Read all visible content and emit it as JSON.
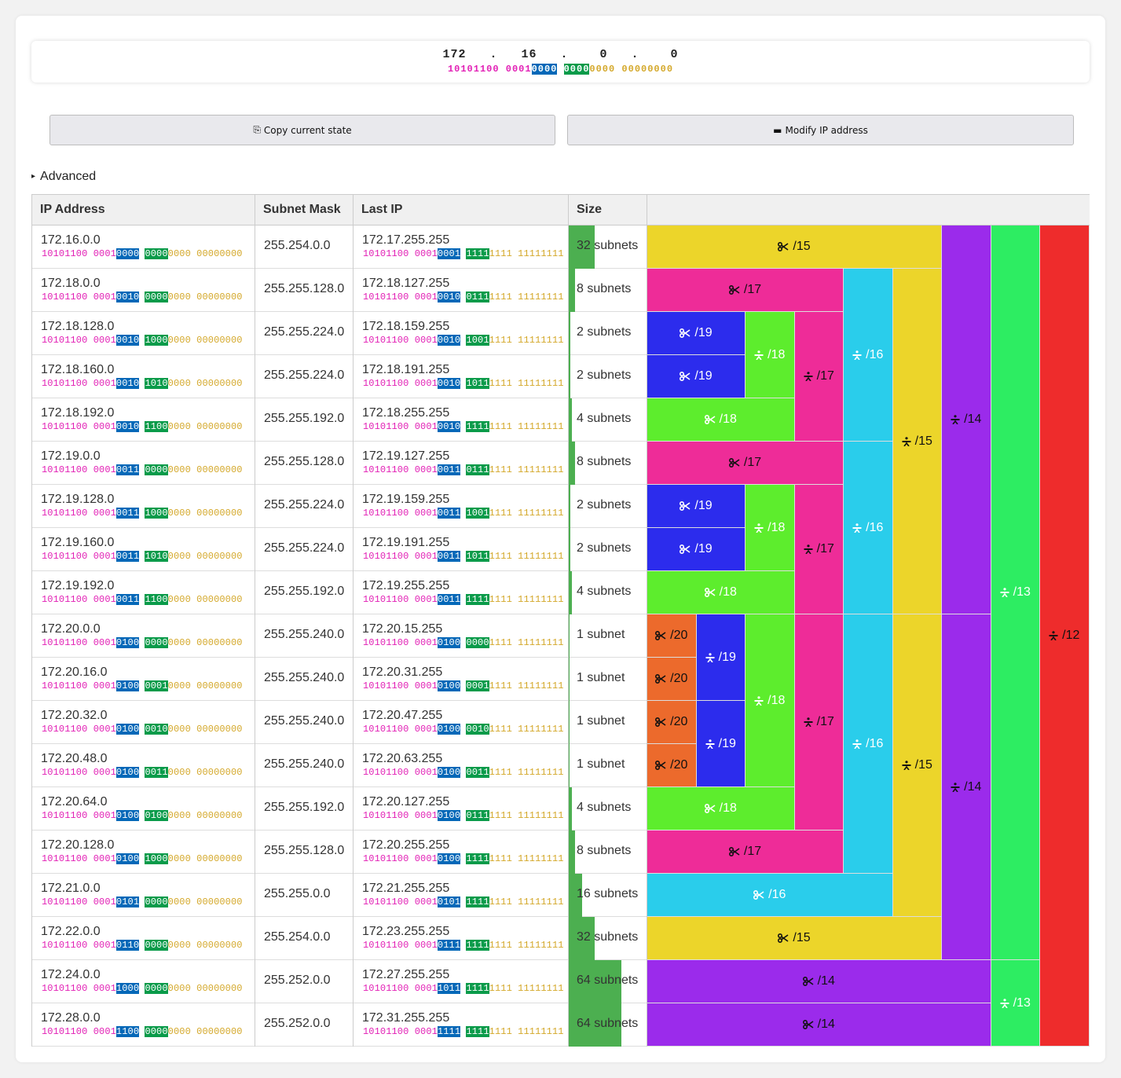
{
  "ip": {
    "octets": [
      "172",
      "16",
      "0",
      "0"
    ],
    "binary": {
      "pink": "10101100 0001",
      "blue": "0000",
      "space": " ",
      "green": "0000",
      "gold": "0000 00000000"
    }
  },
  "buttons": {
    "copy": "Copy current state",
    "copy_icon": "⎘",
    "modify": "Modify IP address",
    "modify_icon": "▬"
  },
  "advanced": {
    "label": "Advanced",
    "icon": "▸"
  },
  "table": {
    "headers": {
      "ip": "IP Address",
      "mask": "Subnet Mask",
      "last": "Last IP",
      "size": "Size"
    },
    "rows": [
      {
        "ip": "172.16.0.0",
        "ip_bin": [
          "10101100 0001",
          "0000",
          "0000",
          "0000 00000000"
        ],
        "mask": "255.254.0.0",
        "last": "172.17.255.255",
        "last_bin": [
          "10101100 0001",
          "0001",
          "1111",
          "1111 11111111"
        ],
        "size": "32 subnets",
        "size_fill": 0.32
      },
      {
        "ip": "172.18.0.0",
        "ip_bin": [
          "10101100 0001",
          "0010",
          "0000",
          "0000 00000000"
        ],
        "mask": "255.255.128.0",
        "last": "172.18.127.255",
        "last_bin": [
          "10101100 0001",
          "0010",
          "0111",
          "1111 11111111"
        ],
        "size": "8 subnets",
        "size_fill": 0.08
      },
      {
        "ip": "172.18.128.0",
        "ip_bin": [
          "10101100 0001",
          "0010",
          "1000",
          "0000 00000000"
        ],
        "mask": "255.255.224.0",
        "last": "172.18.159.255",
        "last_bin": [
          "10101100 0001",
          "0010",
          "1001",
          "1111 11111111"
        ],
        "size": "2 subnets",
        "size_fill": 0.02
      },
      {
        "ip": "172.18.160.0",
        "ip_bin": [
          "10101100 0001",
          "0010",
          "1010",
          "0000 00000000"
        ],
        "mask": "255.255.224.0",
        "last": "172.18.191.255",
        "last_bin": [
          "10101100 0001",
          "0010",
          "1011",
          "1111 11111111"
        ],
        "size": "2 subnets",
        "size_fill": 0.02
      },
      {
        "ip": "172.18.192.0",
        "ip_bin": [
          "10101100 0001",
          "0010",
          "1100",
          "0000 00000000"
        ],
        "mask": "255.255.192.0",
        "last": "172.18.255.255",
        "last_bin": [
          "10101100 0001",
          "0010",
          "1111",
          "1111 11111111"
        ],
        "size": "4 subnets",
        "size_fill": 0.04
      },
      {
        "ip": "172.19.0.0",
        "ip_bin": [
          "10101100 0001",
          "0011",
          "0000",
          "0000 00000000"
        ],
        "mask": "255.255.128.0",
        "last": "172.19.127.255",
        "last_bin": [
          "10101100 0001",
          "0011",
          "0111",
          "1111 11111111"
        ],
        "size": "8 subnets",
        "size_fill": 0.08
      },
      {
        "ip": "172.19.128.0",
        "ip_bin": [
          "10101100 0001",
          "0011",
          "1000",
          "0000 00000000"
        ],
        "mask": "255.255.224.0",
        "last": "172.19.159.255",
        "last_bin": [
          "10101100 0001",
          "0011",
          "1001",
          "1111 11111111"
        ],
        "size": "2 subnets",
        "size_fill": 0.02
      },
      {
        "ip": "172.19.160.0",
        "ip_bin": [
          "10101100 0001",
          "0011",
          "1010",
          "0000 00000000"
        ],
        "mask": "255.255.224.0",
        "last": "172.19.191.255",
        "last_bin": [
          "10101100 0001",
          "0011",
          "1011",
          "1111 11111111"
        ],
        "size": "2 subnets",
        "size_fill": 0.02
      },
      {
        "ip": "172.19.192.0",
        "ip_bin": [
          "10101100 0001",
          "0011",
          "1100",
          "0000 00000000"
        ],
        "mask": "255.255.192.0",
        "last": "172.19.255.255",
        "last_bin": [
          "10101100 0001",
          "0011",
          "1111",
          "1111 11111111"
        ],
        "size": "4 subnets",
        "size_fill": 0.04
      },
      {
        "ip": "172.20.0.0",
        "ip_bin": [
          "10101100 0001",
          "0100",
          "0000",
          "0000 00000000"
        ],
        "mask": "255.255.240.0",
        "last": "172.20.15.255",
        "last_bin": [
          "10101100 0001",
          "0100",
          "0000",
          "1111 11111111"
        ],
        "size": "1 subnet",
        "size_fill": 0.01
      },
      {
        "ip": "172.20.16.0",
        "ip_bin": [
          "10101100 0001",
          "0100",
          "0001",
          "0000 00000000"
        ],
        "mask": "255.255.240.0",
        "last": "172.20.31.255",
        "last_bin": [
          "10101100 0001",
          "0100",
          "0001",
          "1111 11111111"
        ],
        "size": "1 subnet",
        "size_fill": 0.01
      },
      {
        "ip": "172.20.32.0",
        "ip_bin": [
          "10101100 0001",
          "0100",
          "0010",
          "0000 00000000"
        ],
        "mask": "255.255.240.0",
        "last": "172.20.47.255",
        "last_bin": [
          "10101100 0001",
          "0100",
          "0010",
          "1111 11111111"
        ],
        "size": "1 subnet",
        "size_fill": 0.01
      },
      {
        "ip": "172.20.48.0",
        "ip_bin": [
          "10101100 0001",
          "0100",
          "0011",
          "0000 00000000"
        ],
        "mask": "255.255.240.0",
        "last": "172.20.63.255",
        "last_bin": [
          "10101100 0001",
          "0100",
          "0011",
          "1111 11111111"
        ],
        "size": "1 subnet",
        "size_fill": 0.01
      },
      {
        "ip": "172.20.64.0",
        "ip_bin": [
          "10101100 0001",
          "0100",
          "0100",
          "0000 00000000"
        ],
        "mask": "255.255.192.0",
        "last": "172.20.127.255",
        "last_bin": [
          "10101100 0001",
          "0100",
          "0111",
          "1111 11111111"
        ],
        "size": "4 subnets",
        "size_fill": 0.04
      },
      {
        "ip": "172.20.128.0",
        "ip_bin": [
          "10101100 0001",
          "0100",
          "1000",
          "0000 00000000"
        ],
        "mask": "255.255.128.0",
        "last": "172.20.255.255",
        "last_bin": [
          "10101100 0001",
          "0100",
          "1111",
          "1111 11111111"
        ],
        "size": "8 subnets",
        "size_fill": 0.08
      },
      {
        "ip": "172.21.0.0",
        "ip_bin": [
          "10101100 0001",
          "0101",
          "0000",
          "0000 00000000"
        ],
        "mask": "255.255.0.0",
        "last": "172.21.255.255",
        "last_bin": [
          "10101100 0001",
          "0101",
          "1111",
          "1111 11111111"
        ],
        "size": "16 subnets",
        "size_fill": 0.16
      },
      {
        "ip": "172.22.0.0",
        "ip_bin": [
          "10101100 0001",
          "0110",
          "0000",
          "0000 00000000"
        ],
        "mask": "255.254.0.0",
        "last": "172.23.255.255",
        "last_bin": [
          "10101100 0001",
          "0111",
          "1111",
          "1111 11111111"
        ],
        "size": "32 subnets",
        "size_fill": 0.32
      },
      {
        "ip": "172.24.0.0",
        "ip_bin": [
          "10101100 0001",
          "1000",
          "0000",
          "0000 00000000"
        ],
        "mask": "255.252.0.0",
        "last": "172.27.255.255",
        "last_bin": [
          "10101100 0001",
          "1011",
          "1111",
          "1111 11111111"
        ],
        "size": "64 subnets",
        "size_fill": 0.64
      },
      {
        "ip": "172.28.0.0",
        "ip_bin": [
          "10101100 0001",
          "1100",
          "0000",
          "0000 00000000"
        ],
        "mask": "255.252.0.0",
        "last": "172.31.255.255",
        "last_bin": [
          "10101100 0001",
          "1111",
          "1111",
          "1111 11111111"
        ],
        "size": "64 subnets",
        "size_fill": 0.64
      }
    ]
  },
  "colors": {
    "p12": "#ee2c2c",
    "p13": "#2ded62",
    "p14": "#9b2beb",
    "p15": "#ecd52a",
    "p16": "#2acdeb",
    "p17": "#ee2c98",
    "p18": "#5ded2d",
    "p19": "#2c2ced",
    "p20": "#ec6a2c"
  },
  "blocks": [
    {
      "prefix": "/15",
      "action": "split",
      "row": 0,
      "span": 1
    },
    {
      "prefix": "/17",
      "action": "split",
      "row": 1,
      "span": 1
    },
    {
      "prefix": "/19",
      "action": "split",
      "row": 2,
      "span": 1
    },
    {
      "prefix": "/19",
      "action": "split",
      "row": 3,
      "span": 1
    },
    {
      "prefix": "/18",
      "action": "join",
      "row": 2,
      "span": 2
    },
    {
      "prefix": "/18",
      "action": "split",
      "row": 4,
      "span": 1
    },
    {
      "prefix": "/17",
      "action": "join",
      "row": 2,
      "span": 3
    },
    {
      "prefix": "/16",
      "action": "join",
      "row": 1,
      "span": 4
    },
    {
      "prefix": "/17",
      "action": "split",
      "row": 5,
      "span": 1
    },
    {
      "prefix": "/19",
      "action": "split",
      "row": 6,
      "span": 1
    },
    {
      "prefix": "/19",
      "action": "split",
      "row": 7,
      "span": 1
    },
    {
      "prefix": "/18",
      "action": "join",
      "row": 6,
      "span": 2
    },
    {
      "prefix": "/18",
      "action": "split",
      "row": 8,
      "span": 1
    },
    {
      "prefix": "/17",
      "action": "join",
      "row": 6,
      "span": 3
    },
    {
      "prefix": "/16",
      "action": "join",
      "row": 5,
      "span": 4
    },
    {
      "prefix": "/15",
      "action": "join",
      "row": 1,
      "span": 8
    },
    {
      "prefix": "/14",
      "action": "join",
      "row": 0,
      "span": 9
    },
    {
      "prefix": "/20",
      "action": "split",
      "row": 9,
      "span": 1
    },
    {
      "prefix": "/20",
      "action": "split",
      "row": 10,
      "span": 1
    },
    {
      "prefix": "/19",
      "action": "join",
      "row": 9,
      "span": 2
    },
    {
      "prefix": "/20",
      "action": "split",
      "row": 11,
      "span": 1
    },
    {
      "prefix": "/20",
      "action": "split",
      "row": 12,
      "span": 1
    },
    {
      "prefix": "/19",
      "action": "join",
      "row": 11,
      "span": 2
    },
    {
      "prefix": "/18",
      "action": "join",
      "row": 9,
      "span": 4
    },
    {
      "prefix": "/18",
      "action": "split",
      "row": 13,
      "span": 1
    },
    {
      "prefix": "/17",
      "action": "join",
      "row": 9,
      "span": 5
    },
    {
      "prefix": "/17",
      "action": "split",
      "row": 14,
      "span": 1
    },
    {
      "prefix": "/16",
      "action": "join",
      "row": 9,
      "span": 6
    },
    {
      "prefix": "/16",
      "action": "split",
      "row": 15,
      "span": 1
    },
    {
      "prefix": "/15",
      "action": "join",
      "row": 9,
      "span": 7
    },
    {
      "prefix": "/15",
      "action": "split",
      "row": 16,
      "span": 1
    },
    {
      "prefix": "/14",
      "action": "join",
      "row": 9,
      "span": 8
    },
    {
      "prefix": "/13",
      "action": "join",
      "row": 0,
      "span": 17
    },
    {
      "prefix": "/14",
      "action": "split",
      "row": 17,
      "span": 1
    },
    {
      "prefix": "/14",
      "action": "split",
      "row": 18,
      "span": 1
    },
    {
      "prefix": "/13",
      "action": "join",
      "row": 17,
      "span": 2
    },
    {
      "prefix": "/12",
      "action": "join",
      "row": 0,
      "span": 19
    }
  ]
}
